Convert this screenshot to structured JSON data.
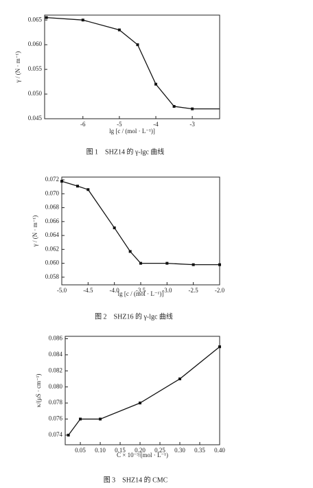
{
  "chart_data": [
    {
      "type": "line",
      "title": "图 1　SHZ14 的 γ-lgc 曲线",
      "x_label": "lg [c / (mol · L⁻¹)]",
      "y_label": "γ / (N · m⁻¹)",
      "x": [
        -7.0,
        -6,
        -5,
        -4.5,
        -4,
        -3.5,
        -3,
        -2.25
      ],
      "series": [
        {
          "name": "SHZ14",
          "color": "#111111",
          "values": [
            0.0655,
            0.065,
            0.063,
            0.06,
            0.052,
            0.0475,
            0.047,
            0.047
          ],
          "markers": [
            true,
            true,
            true,
            true,
            true,
            true,
            true,
            false
          ]
        }
      ],
      "xlim": [
        -7.05,
        -2.25
      ],
      "xticks": [
        -6,
        -5,
        -4,
        -3
      ],
      "ylim": [
        0.045,
        0.066
      ],
      "yticks": [
        0.045,
        {
          "value": 0.05,
          "label": "0.050"
        },
        0.055,
        {
          "value": 0.06,
          "label": "0.060"
        },
        0.065
      ]
    },
    {
      "type": "line",
      "title": "图 2　SHZ16 的 γ-lgc 曲线",
      "x_label": "lg [c / (mol · L⁻¹)]",
      "y_label": "γ / (N · m⁻¹)",
      "x": [
        -5,
        -4.7,
        -4.5,
        -4,
        -3.7,
        -3.5,
        -3,
        -2.5,
        -2
      ],
      "series": [
        {
          "name": "SHZ16",
          "color": "#111111",
          "values": [
            0.0718,
            0.0711,
            0.0706,
            0.0651,
            0.0617,
            0.06,
            0.06,
            0.0598,
            0.0598
          ],
          "markers": [
            true,
            true,
            true,
            true,
            true,
            true,
            true,
            true,
            true
          ]
        }
      ],
      "xlim": [
        -5,
        -2
      ],
      "xticks": [
        {
          "value": -5,
          "label": "-5.0"
        },
        -4.5,
        {
          "value": -4,
          "label": "-4.0"
        },
        -3.5,
        {
          "value": -3,
          "label": "-3.0"
        },
        -2.5,
        {
          "value": -2,
          "label": "-2.0"
        }
      ],
      "ylim": [
        0.0569,
        0.0724
      ],
      "yticks": [
        0.058,
        {
          "value": 0.06,
          "label": "0.060"
        },
        0.062,
        0.064,
        0.066,
        0.068,
        {
          "value": 0.07,
          "label": "0.070"
        },
        0.072
      ]
    },
    {
      "type": "line",
      "title": "图 3　SHZ14 的 CMC",
      "x_label": "C × 10⁻³/(mol · L⁻¹)",
      "y_label": "κ/(μS · cm⁻¹)",
      "x": [
        0.02,
        0.05,
        0.1,
        0.2,
        0.3,
        0.4
      ],
      "series": [
        {
          "name": "SHZ14",
          "color": "#111111",
          "values": [
            0.074,
            0.076,
            0.076,
            0.078,
            0.081,
            0.085
          ],
          "markers": [
            true,
            true,
            true,
            true,
            true,
            true
          ]
        }
      ],
      "xlim": [
        0.012,
        0.4
      ],
      "xticks": [
        0.05,
        {
          "value": 0.1,
          "label": "0.10"
        },
        0.15,
        {
          "value": 0.2,
          "label": "0.20"
        },
        0.25,
        {
          "value": 0.3,
          "label": "0.30"
        },
        0.35,
        {
          "value": 0.4,
          "label": "0.40"
        }
      ],
      "ylim": [
        0.0728,
        0.0863
      ],
      "yticks": [
        0.074,
        0.076,
        0.078,
        {
          "value": 0.08,
          "label": "0.080"
        },
        0.082,
        0.084,
        0.086
      ]
    }
  ]
}
